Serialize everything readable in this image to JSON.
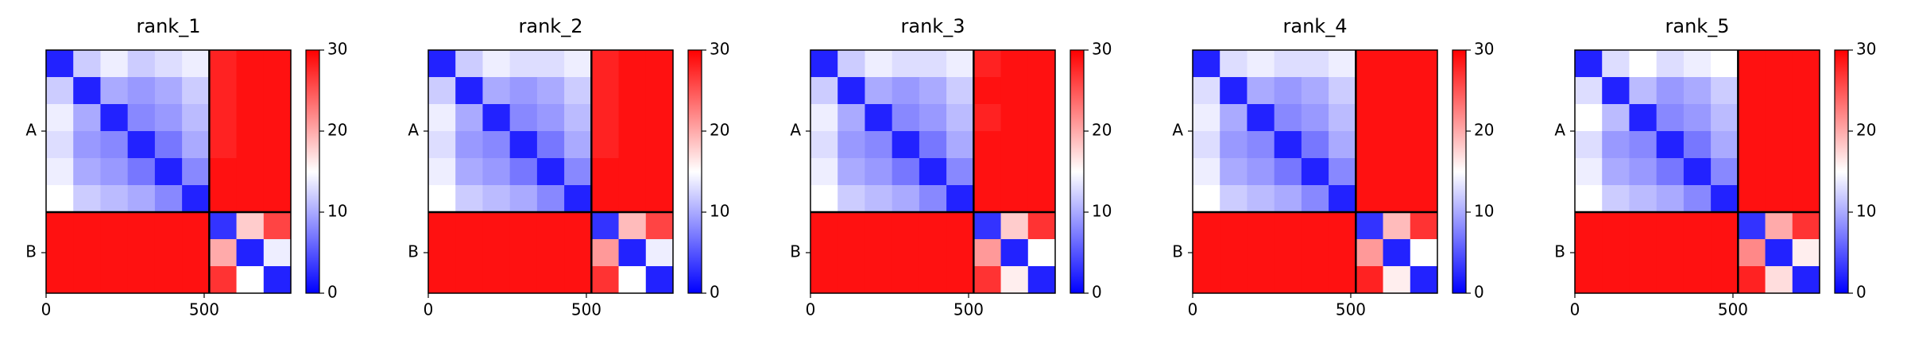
{
  "chart_data": [
    {
      "type": "heatmap",
      "title": "rank_1",
      "xlim": [
        0,
        774
      ],
      "xticks": [
        0,
        500
      ],
      "clim": [
        0,
        30
      ],
      "cticks": [
        0,
        10,
        20,
        30
      ],
      "colors": [
        "#0000ff",
        "#ffffff",
        "#ff0000"
      ],
      "chains": [
        {
          "name": "A",
          "start": 0,
          "end": 516
        },
        {
          "name": "B",
          "start": 516,
          "end": 774
        }
      ],
      "z": [
        [
          2,
          12,
          14,
          12,
          13,
          14,
          28,
          29,
          29
        ],
        [
          12,
          2,
          10,
          9,
          10,
          12,
          28,
          29,
          29
        ],
        [
          14,
          10,
          2,
          8,
          9,
          11,
          28,
          29,
          29
        ],
        [
          13,
          9,
          8,
          2,
          7,
          10,
          28,
          29,
          29
        ],
        [
          14,
          10,
          9,
          7,
          2,
          8,
          29,
          29,
          29
        ],
        [
          15,
          12,
          11,
          10,
          8,
          2,
          29,
          29,
          29
        ],
        [
          29,
          29,
          29,
          29,
          29,
          29,
          3,
          18,
          26
        ],
        [
          29,
          29,
          29,
          29,
          29,
          29,
          20,
          2,
          14
        ],
        [
          29,
          29,
          29,
          29,
          29,
          29,
          27,
          15,
          2
        ]
      ]
    },
    {
      "type": "heatmap",
      "title": "rank_2",
      "xlim": [
        0,
        774
      ],
      "xticks": [
        0,
        500
      ],
      "clim": [
        0,
        30
      ],
      "cticks": [
        0,
        10,
        20,
        30
      ],
      "colors": [
        "#0000ff",
        "#ffffff",
        "#ff0000"
      ],
      "chains": [
        {
          "name": "A",
          "start": 0,
          "end": 516
        },
        {
          "name": "B",
          "start": 516,
          "end": 774
        }
      ],
      "z": [
        [
          2,
          12,
          14,
          13,
          13,
          14,
          28,
          29,
          29
        ],
        [
          12,
          2,
          10,
          9,
          10,
          12,
          28,
          29,
          29
        ],
        [
          14,
          10,
          2,
          8,
          9,
          11,
          28,
          29,
          29
        ],
        [
          13,
          9,
          8,
          2,
          7,
          10,
          28,
          29,
          29
        ],
        [
          14,
          10,
          9,
          7,
          2,
          8,
          29,
          29,
          29
        ],
        [
          15,
          12,
          11,
          10,
          8,
          2,
          29,
          29,
          29
        ],
        [
          29,
          29,
          29,
          29,
          29,
          29,
          3,
          19,
          26
        ],
        [
          29,
          29,
          29,
          29,
          29,
          29,
          21,
          2,
          14
        ],
        [
          29,
          29,
          29,
          29,
          29,
          29,
          27,
          15,
          2
        ]
      ]
    },
    {
      "type": "heatmap",
      "title": "rank_3",
      "xlim": [
        0,
        774
      ],
      "xticks": [
        0,
        500
      ],
      "clim": [
        0,
        30
      ],
      "cticks": [
        0,
        10,
        20,
        30
      ],
      "colors": [
        "#0000ff",
        "#ffffff",
        "#ff0000"
      ],
      "chains": [
        {
          "name": "A",
          "start": 0,
          "end": 516
        },
        {
          "name": "B",
          "start": 516,
          "end": 774
        }
      ],
      "z": [
        [
          2,
          12,
          14,
          13,
          13,
          14,
          28,
          29,
          29
        ],
        [
          12,
          2,
          10,
          9,
          10,
          12,
          29,
          29,
          29
        ],
        [
          14,
          10,
          2,
          8,
          9,
          11,
          28,
          29,
          29
        ],
        [
          13,
          9,
          8,
          2,
          7,
          10,
          29,
          29,
          29
        ],
        [
          14,
          10,
          9,
          7,
          2,
          8,
          29,
          29,
          29
        ],
        [
          15,
          12,
          11,
          10,
          8,
          2,
          29,
          29,
          29
        ],
        [
          29,
          29,
          29,
          29,
          29,
          29,
          3,
          18,
          27
        ],
        [
          29,
          29,
          29,
          29,
          29,
          29,
          21,
          2,
          15
        ],
        [
          29,
          29,
          29,
          29,
          29,
          29,
          27,
          16,
          2
        ]
      ]
    },
    {
      "type": "heatmap",
      "title": "rank_4",
      "xlim": [
        0,
        774
      ],
      "xticks": [
        0,
        500
      ],
      "clim": [
        0,
        30
      ],
      "cticks": [
        0,
        10,
        20,
        30
      ],
      "colors": [
        "#0000ff",
        "#ffffff",
        "#ff0000"
      ],
      "chains": [
        {
          "name": "A",
          "start": 0,
          "end": 516
        },
        {
          "name": "B",
          "start": 516,
          "end": 774
        }
      ],
      "z": [
        [
          2,
          13,
          14,
          13,
          13,
          14,
          29,
          29,
          29
        ],
        [
          13,
          2,
          10,
          9,
          10,
          12,
          29,
          29,
          29
        ],
        [
          14,
          10,
          2,
          8,
          9,
          11,
          29,
          29,
          29
        ],
        [
          13,
          9,
          8,
          2,
          7,
          10,
          29,
          29,
          29
        ],
        [
          14,
          10,
          9,
          7,
          2,
          8,
          29,
          29,
          29
        ],
        [
          15,
          12,
          11,
          10,
          8,
          2,
          29,
          29,
          29
        ],
        [
          29,
          29,
          29,
          29,
          29,
          29,
          3,
          19,
          27
        ],
        [
          29,
          29,
          29,
          29,
          29,
          29,
          21,
          2,
          15
        ],
        [
          29,
          29,
          29,
          29,
          29,
          29,
          28,
          16,
          2
        ]
      ]
    },
    {
      "type": "heatmap",
      "title": "rank_5",
      "xlim": [
        0,
        774
      ],
      "xticks": [
        0,
        500
      ],
      "clim": [
        0,
        30
      ],
      "cticks": [
        0,
        10,
        20,
        30
      ],
      "colors": [
        "#0000ff",
        "#ffffff",
        "#ff0000"
      ],
      "chains": [
        {
          "name": "A",
          "start": 0,
          "end": 516
        },
        {
          "name": "B",
          "start": 516,
          "end": 774
        }
      ],
      "z": [
        [
          2,
          13,
          15,
          13,
          14,
          15,
          29,
          29,
          29
        ],
        [
          13,
          2,
          11,
          9,
          10,
          12,
          29,
          29,
          29
        ],
        [
          15,
          11,
          2,
          8,
          9,
          11,
          29,
          29,
          29
        ],
        [
          13,
          9,
          8,
          2,
          7,
          10,
          29,
          29,
          29
        ],
        [
          14,
          10,
          9,
          7,
          2,
          8,
          29,
          29,
          29
        ],
        [
          15,
          12,
          11,
          10,
          8,
          2,
          29,
          29,
          29
        ],
        [
          29,
          29,
          29,
          29,
          29,
          29,
          3,
          20,
          27
        ],
        [
          29,
          29,
          29,
          29,
          29,
          29,
          22,
          2,
          16
        ],
        [
          29,
          29,
          29,
          29,
          29,
          29,
          28,
          17,
          2
        ]
      ]
    }
  ]
}
